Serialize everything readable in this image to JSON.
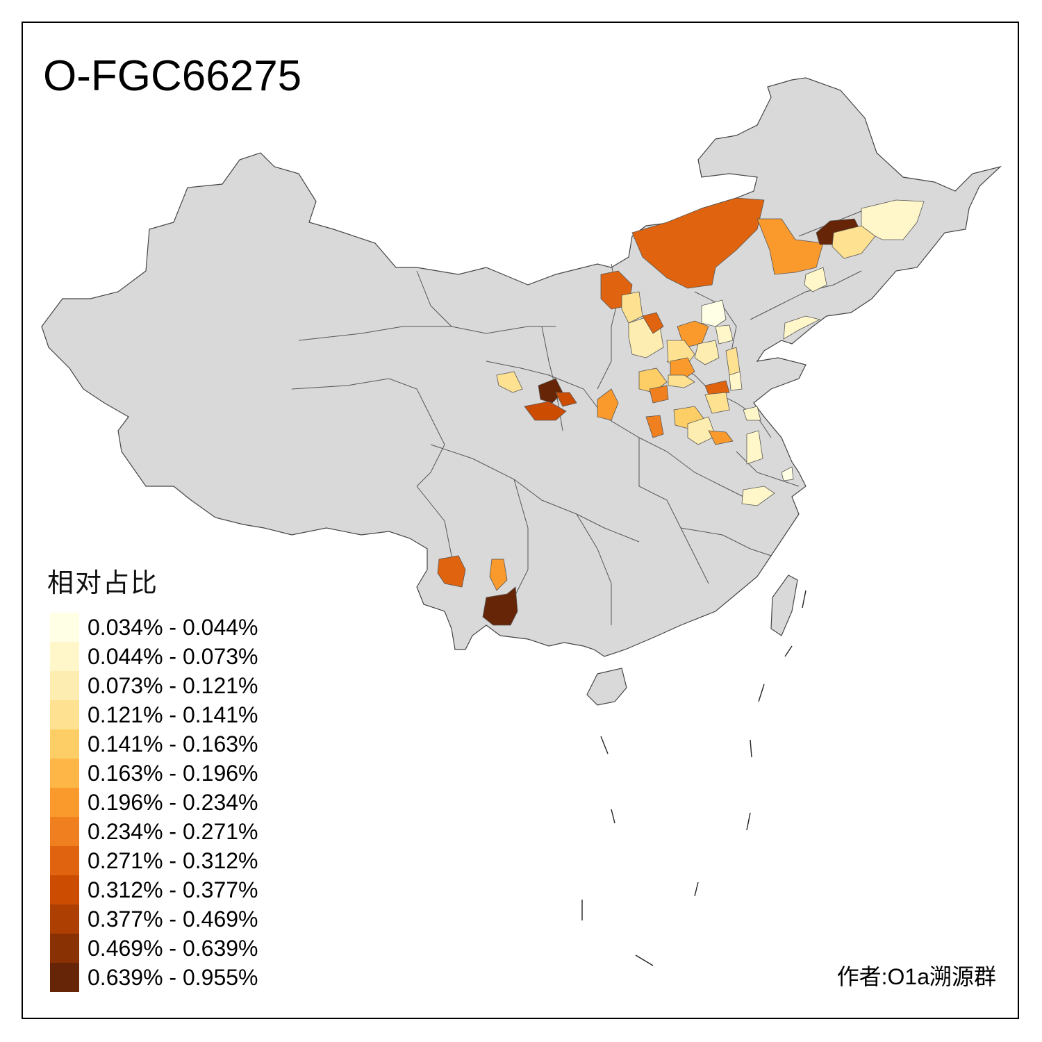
{
  "title": "O-FGC66275",
  "legend": {
    "title": "相对占比",
    "items": [
      {
        "label": "0.034% - 0.044%",
        "color": "#FFFFE5"
      },
      {
        "label": "0.044% - 0.073%",
        "color": "#FFF7C9"
      },
      {
        "label": "0.073% - 0.121%",
        "color": "#FEEDB0"
      },
      {
        "label": "0.121% - 0.141%",
        "color": "#FEE291"
      },
      {
        "label": "0.141% - 0.163%",
        "color": "#FECE66"
      },
      {
        "label": "0.163% - 0.196%",
        "color": "#FEB646"
      },
      {
        "label": "0.196% - 0.234%",
        "color": "#FB9A2C"
      },
      {
        "label": "0.234% - 0.271%",
        "color": "#F07F1F"
      },
      {
        "label": "0.271% - 0.312%",
        "color": "#E0640F"
      },
      {
        "label": "0.312% - 0.377%",
        "color": "#CC4C02"
      },
      {
        "label": "0.377% - 0.469%",
        "color": "#AE3F03"
      },
      {
        "label": "0.469% - 0.639%",
        "color": "#8A3104"
      },
      {
        "label": "0.639% - 0.955%",
        "color": "#662506"
      }
    ]
  },
  "author": "作者:O1a溯源群",
  "colors": {
    "base_region": "#D9D9D9",
    "border": "#555555",
    "frame": "#000000"
  }
}
